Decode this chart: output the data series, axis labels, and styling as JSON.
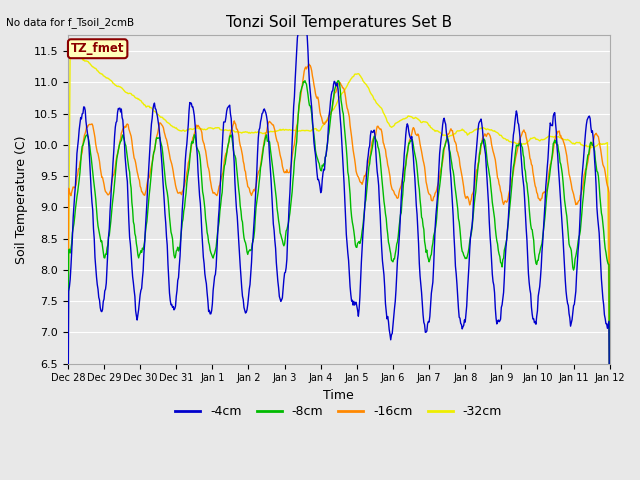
{
  "title": "Tonzi Soil Temperatures Set B",
  "no_data_text": "No data for f_Tsoil_2cmB",
  "annotation_text": "TZ_fmet",
  "xlabel": "Time",
  "ylabel": "Soil Temperature (C)",
  "ylim": [
    6.5,
    11.75
  ],
  "background_color": "#e8e8e8",
  "grid_color": "white",
  "colors": {
    "4cm": "#0000cc",
    "8cm": "#00bb00",
    "16cm": "#ff8800",
    "32cm": "#eeee00"
  },
  "xtick_labels": [
    "Dec 28",
    "Dec 29",
    "Dec 30",
    "Dec 31",
    "Jan 1",
    "Jan 2",
    "Jan 3",
    "Jan 4",
    "Jan 5",
    "Jan 6",
    "Jan 7",
    "Jan 8",
    "Jan 9",
    "Jan 10",
    "Jan 11",
    "Jan 12"
  ],
  "legend_labels": [
    "-4cm",
    "-8cm",
    "-16cm",
    "-32cm"
  ],
  "figsize": [
    6.4,
    4.8
  ],
  "dpi": 100
}
